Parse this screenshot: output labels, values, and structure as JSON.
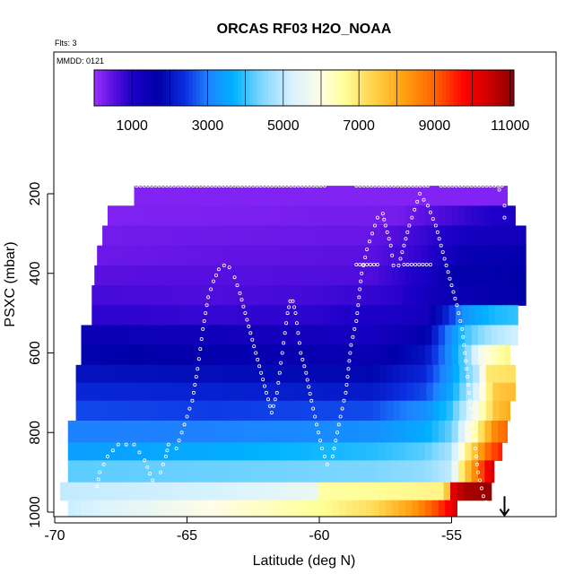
{
  "chart_data": {
    "type": "heatmap",
    "title": "ORCAS RF03 H2O_NOAA",
    "corner_labels": [
      "Flts: 3",
      "MMDD: 0121"
    ],
    "xlabel": "Latitude (deg N)",
    "ylabel": "PSXC (mbar)",
    "xlim": [
      -70,
      -51
    ],
    "ylim": [
      1010,
      90
    ],
    "x_ticks": [
      -70,
      -65,
      -60,
      -55
    ],
    "x_tick_labels": [
      "-70",
      "-65",
      "-60",
      "-55"
    ],
    "y_ticks": [
      200,
      400,
      600,
      800,
      1000
    ],
    "y_tick_labels": [
      "200",
      "400",
      "600",
      "800",
      "1000"
    ],
    "colorbar": {
      "ticks": [
        1000,
        3000,
        5000,
        7000,
        9000,
        11000
      ],
      "tick_labels": [
        "1000",
        "3000",
        "5000",
        "7000",
        "9000",
        "11000"
      ],
      "min": 0,
      "max": 11100,
      "stops": [
        {
          "v": 0,
          "color": "#9b30ff"
        },
        {
          "v": 500,
          "color": "#5a10e0"
        },
        {
          "v": 1000,
          "color": "#1e00c8"
        },
        {
          "v": 1700,
          "color": "#0000a8"
        },
        {
          "v": 2400,
          "color": "#0a2ee0"
        },
        {
          "v": 3000,
          "color": "#1e82ff"
        },
        {
          "v": 3700,
          "color": "#00b2ff"
        },
        {
          "v": 4400,
          "color": "#7dd6ff"
        },
        {
          "v": 5200,
          "color": "#d7f2ff"
        },
        {
          "v": 6000,
          "color": "#fffde6"
        },
        {
          "v": 6600,
          "color": "#ffff9a"
        },
        {
          "v": 7400,
          "color": "#ffd24a"
        },
        {
          "v": 8200,
          "color": "#ffa010"
        },
        {
          "v": 9000,
          "color": "#ff6400"
        },
        {
          "v": 9800,
          "color": "#ff0000"
        },
        {
          "v": 10500,
          "color": "#c80000"
        },
        {
          "v": 11100,
          "color": "#8b0000"
        }
      ]
    },
    "bands": [
      {
        "p_top": 180,
        "p_bot": 230,
        "x0": -67.0,
        "x1": -52.9,
        "values": [
          [
            -70,
            200
          ],
          [
            -51,
            200
          ]
        ]
      },
      {
        "p_top": 230,
        "p_bot": 280,
        "x0": -68.0,
        "x1": -52.6,
        "values": [
          [
            -70,
            200
          ],
          [
            -57,
            300
          ],
          [
            -55,
            700
          ],
          [
            -54,
            900
          ],
          [
            -52.6,
            1100
          ]
        ]
      },
      {
        "p_top": 280,
        "p_bot": 330,
        "x0": -68.2,
        "x1": -52.2,
        "values": [
          [
            -70,
            300
          ],
          [
            -58,
            400
          ],
          [
            -56,
            800
          ],
          [
            -54.5,
            1200
          ],
          [
            -52.2,
            1300
          ]
        ]
      },
      {
        "p_top": 330,
        "p_bot": 380,
        "x0": -68.4,
        "x1": -52.2,
        "values": [
          [
            -70,
            350
          ],
          [
            -58,
            500
          ],
          [
            -56,
            900
          ],
          [
            -54.5,
            1500
          ],
          [
            -52.2,
            1600
          ]
        ]
      },
      {
        "p_top": 380,
        "p_bot": 430,
        "x0": -68.5,
        "x1": -52.2,
        "values": [
          [
            -70,
            500
          ],
          [
            -62,
            550
          ],
          [
            -58,
            600
          ],
          [
            -56,
            1100
          ],
          [
            -55,
            1600
          ],
          [
            -52.2,
            1700
          ]
        ]
      },
      {
        "p_top": 430,
        "p_bot": 480,
        "x0": -68.6,
        "x1": -52.2,
        "values": [
          [
            -70,
            700
          ],
          [
            -64,
            600
          ],
          [
            -60,
            700
          ],
          [
            -57,
            900
          ],
          [
            -55.5,
            1400
          ],
          [
            -52.2,
            1700
          ]
        ]
      },
      {
        "p_top": 480,
        "p_bot": 530,
        "x0": -68.6,
        "x1": -52.5,
        "values": [
          [
            -70,
            900
          ],
          [
            -64,
            800
          ],
          [
            -60,
            900
          ],
          [
            -56,
            1200
          ],
          [
            -55,
            2500
          ],
          [
            -54.5,
            3300
          ],
          [
            -53.5,
            3800
          ],
          [
            -52.5,
            4000
          ]
        ]
      },
      {
        "p_top": 530,
        "p_bot": 580,
        "x0": -69.0,
        "x1": -52.5,
        "values": [
          [
            -70,
            1500
          ],
          [
            -64,
            1300
          ],
          [
            -58,
            1200
          ],
          [
            -56,
            1600
          ],
          [
            -55,
            3200
          ],
          [
            -54.5,
            4000
          ],
          [
            -53.5,
            4800
          ],
          [
            -52.5,
            5200
          ]
        ]
      },
      {
        "p_top": 580,
        "p_bot": 630,
        "x0": -69.0,
        "x1": -52.8,
        "values": [
          [
            -70,
            1800
          ],
          [
            -64,
            1600
          ],
          [
            -58,
            1500
          ],
          [
            -56,
            2000
          ],
          [
            -55,
            3300
          ],
          [
            -54.5,
            4300
          ],
          [
            -53.8,
            6000
          ],
          [
            -52.8,
            6800
          ]
        ]
      },
      {
        "p_top": 630,
        "p_bot": 675,
        "x0": -69.2,
        "x1": -52.6,
        "values": [
          [
            -70,
            2000
          ],
          [
            -64,
            1900
          ],
          [
            -58,
            1800
          ],
          [
            -56,
            2300
          ],
          [
            -55,
            3400
          ],
          [
            -54,
            5000
          ],
          [
            -53.6,
            7000
          ],
          [
            -52.6,
            7200
          ]
        ]
      },
      {
        "p_top": 675,
        "p_bot": 720,
        "x0": -69.2,
        "x1": -52.6,
        "values": [
          [
            -70,
            2300
          ],
          [
            -64,
            2200
          ],
          [
            -58,
            2100
          ],
          [
            -56,
            2600
          ],
          [
            -55,
            3600
          ],
          [
            -54,
            5400
          ],
          [
            -53.4,
            7500
          ],
          [
            -52.6,
            7800
          ]
        ]
      },
      {
        "p_top": 720,
        "p_bot": 770,
        "x0": -69.2,
        "x1": -52.8,
        "values": [
          [
            -70,
            2600
          ],
          [
            -64,
            2500
          ],
          [
            -58,
            2600
          ],
          [
            -56,
            3200
          ],
          [
            -55,
            4000
          ],
          [
            -54,
            6000
          ],
          [
            -53.3,
            7700
          ],
          [
            -52.8,
            8000
          ]
        ]
      },
      {
        "p_top": 770,
        "p_bot": 825,
        "x0": -69.5,
        "x1": -52.9,
        "values": [
          [
            -70,
            3000
          ],
          [
            -64,
            3000
          ],
          [
            -58,
            3200
          ],
          [
            -56,
            3600
          ],
          [
            -55,
            4300
          ],
          [
            -54,
            6800
          ],
          [
            -53.4,
            8500
          ],
          [
            -52.9,
            9000
          ]
        ]
      },
      {
        "p_top": 825,
        "p_bot": 870,
        "x0": -69.5,
        "x1": -53.1,
        "values": [
          [
            -70,
            3400
          ],
          [
            -64,
            3600
          ],
          [
            -58,
            3900
          ],
          [
            -56,
            4200
          ],
          [
            -55,
            4800
          ],
          [
            -54.3,
            7200
          ],
          [
            -53.6,
            9000
          ],
          [
            -53.1,
            9600
          ]
        ]
      },
      {
        "p_top": 870,
        "p_bot": 925,
        "x0": -69.5,
        "x1": -53.4,
        "values": [
          [
            -70,
            4200
          ],
          [
            -64,
            4300
          ],
          [
            -58,
            4400
          ],
          [
            -56,
            4600
          ],
          [
            -55,
            5000
          ],
          [
            -54.6,
            7000
          ],
          [
            -53.8,
            9500
          ],
          [
            -53.4,
            10500
          ]
        ]
      },
      {
        "p_top": 925,
        "p_bot": 970,
        "x0": -69.8,
        "x1": -53.5,
        "values": [
          [
            -70,
            5000
          ],
          [
            -64,
            5200
          ],
          [
            -60.1,
            5600
          ],
          [
            -60,
            6500
          ],
          [
            -55.2,
            6800
          ],
          [
            -55.1,
            10000
          ],
          [
            -54.5,
            10800
          ],
          [
            -53.5,
            11000
          ]
        ]
      },
      {
        "p_top": 970,
        "p_bot": 1010,
        "x0": -69.5,
        "x1": -54.8,
        "values": [
          [
            -70,
            5000
          ],
          [
            -64,
            6000
          ],
          [
            -60,
            6600
          ],
          [
            -58,
            7200
          ],
          [
            -56.5,
            8200
          ],
          [
            -55.5,
            9300
          ],
          [
            -55.0,
            10000
          ],
          [
            -54.8,
            10500
          ]
        ]
      }
    ],
    "track": [
      [
        -68.4,
        935
      ],
      [
        -68.3,
        900
      ],
      [
        -68.0,
        860
      ],
      [
        -67.6,
        830
      ],
      [
        -67.0,
        830
      ],
      [
        -66.6,
        870
      ],
      [
        -66.3,
        920
      ],
      [
        -66.0,
        900
      ],
      [
        -65.8,
        860
      ],
      [
        -65.7,
        830
      ],
      [
        -65.4,
        840
      ],
      [
        -65.2,
        800
      ],
      [
        -65.0,
        760
      ],
      [
        -64.8,
        720
      ],
      [
        -64.7,
        680
      ],
      [
        -64.6,
        640
      ],
      [
        -64.5,
        590
      ],
      [
        -64.4,
        540
      ],
      [
        -64.3,
        500
      ],
      [
        -64.2,
        460
      ],
      [
        -64.0,
        420
      ],
      [
        -63.8,
        390
      ],
      [
        -63.6,
        380
      ],
      [
        -63.4,
        385
      ],
      [
        -63.2,
        410
      ],
      [
        -63.0,
        450
      ],
      [
        -62.8,
        500
      ],
      [
        -62.6,
        550
      ],
      [
        -62.4,
        600
      ],
      [
        -62.2,
        650
      ],
      [
        -62.0,
        700
      ],
      [
        -61.8,
        750
      ],
      [
        -61.6,
        700
      ],
      [
        -61.5,
        650
      ],
      [
        -61.4,
        600
      ],
      [
        -61.3,
        550
      ],
      [
        -61.2,
        500
      ],
      [
        -61.1,
        470
      ],
      [
        -61.0,
        470
      ],
      [
        -60.9,
        500
      ],
      [
        -60.8,
        550
      ],
      [
        -60.7,
        600
      ],
      [
        -60.5,
        650
      ],
      [
        -60.3,
        720
      ],
      [
        -60.1,
        780
      ],
      [
        -59.9,
        840
      ],
      [
        -59.7,
        880
      ],
      [
        -59.5,
        860
      ],
      [
        -59.2,
        760
      ],
      [
        -59.0,
        700
      ],
      [
        -58.9,
        640
      ],
      [
        -58.8,
        580
      ],
      [
        -58.6,
        520
      ],
      [
        -58.5,
        460
      ],
      [
        -58.4,
        400
      ],
      [
        -58.2,
        340
      ],
      [
        -58.0,
        300
      ],
      [
        -57.8,
        260
      ],
      [
        -57.6,
        250
      ],
      [
        -57.5,
        280
      ],
      [
        -57.3,
        330
      ],
      [
        -57.2,
        380
      ],
      [
        -57.0,
        380
      ],
      [
        -56.8,
        330
      ],
      [
        -56.6,
        280
      ],
      [
        -56.4,
        240
      ],
      [
        -56.2,
        200
      ],
      [
        -55.9,
        230
      ],
      [
        -55.6,
        280
      ],
      [
        -55.4,
        330
      ],
      [
        -55.2,
        380
      ],
      [
        -55.0,
        430
      ],
      [
        -54.8,
        480
      ],
      [
        -54.6,
        540
      ],
      [
        -54.5,
        600
      ],
      [
        -54.4,
        660
      ],
      [
        -54.3,
        720
      ],
      [
        -54.2,
        780
      ],
      [
        -54.1,
        840
      ],
      [
        -54.0,
        900
      ],
      [
        -53.8,
        960
      ],
      [
        -53.6,
        990
      ],
      [
        -53.3,
        990
      ]
    ],
    "track_top": {
      "p": 180,
      "x_ranges": [
        [
          -66.9,
          -59.8
        ],
        [
          -58.6,
          -55.9
        ],
        [
          -55.4,
          -53.1
        ]
      ]
    },
    "track_flat": {
      "p": 378,
      "x_ranges": [
        [
          -58.6,
          -57.8
        ],
        [
          -56.8,
          -55.8
        ]
      ]
    },
    "track_tail": [
      [
        -53.2,
        190
      ],
      [
        -53.0,
        230
      ],
      [
        -53.0,
        260
      ]
    ],
    "arrow": {
      "x": -53.0,
      "p_from": 960,
      "p_to": 1008
    }
  }
}
